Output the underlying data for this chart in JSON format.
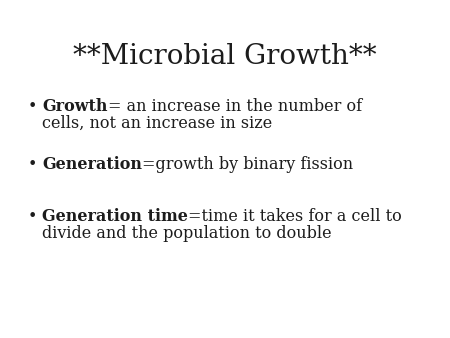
{
  "title": "**Microbial Growth**",
  "background_color": "#ffffff",
  "text_color": "#1c1c1c",
  "title_fontsize": 20,
  "body_fontsize": 11.5,
  "bullet_char": "•",
  "bullet_items": [
    {
      "bold": "Growth",
      "normal": "= an increase in the number of\ncells, not an increase in size"
    },
    {
      "bold": "Generation",
      "normal": "=growth by binary fission"
    },
    {
      "bold": "Generation time",
      "normal": "=time it takes for a cell to\ndivide and the population to double"
    }
  ],
  "fig_width": 4.5,
  "fig_height": 3.38,
  "dpi": 100,
  "font_family": "DejaVu Serif"
}
